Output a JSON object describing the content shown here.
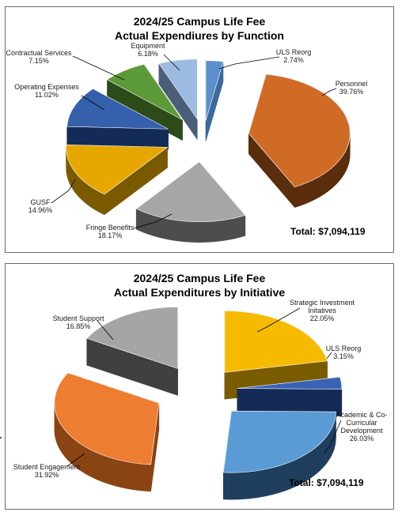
{
  "charts": [
    {
      "title_line1": "2024/25 Campus Life Fee",
      "title_line2": "Actual Expendiures by Function",
      "total_label": "Total:  $7,094,119"
    },
    {
      "title_line1": "2024/25 Campus Life Fee",
      "title_line2": "Actual Expenditures by Initiative",
      "total_label": "Total:  $7,094,119"
    }
  ],
  "chart_data": [
    {
      "type": "pie",
      "style": "3d-exploded",
      "title": "2024/25 Campus Life Fee Actual Expendiures by Function",
      "total": "Total:  $7,094,119",
      "slices": [
        {
          "label": "ULS  Reorg",
          "pct_text": "2.74%",
          "value": 2.74,
          "color": "#5b8fc9",
          "side": "#3b6a9c"
        },
        {
          "label": "Personnel",
          "pct_text": "39.76%",
          "value": 39.76,
          "color": "#d06b26",
          "side": "#5a2d0d"
        },
        {
          "label": "Fringe Benefits",
          "pct_text": "18.17%",
          "value": 18.17,
          "color": "#a6a6a6",
          "side": "#4d4d4d"
        },
        {
          "label": "GUSF",
          "pct_text": "14.96%",
          "value": 14.96,
          "color": "#e6a800",
          "side": "#7a5a00"
        },
        {
          "label": "Operating Expenses",
          "pct_text": "11.02%",
          "value": 11.02,
          "color": "#3460ac",
          "side": "#142a57"
        },
        {
          "label": "Contractual Services",
          "pct_text": "7.15%",
          "value": 7.15,
          "color": "#5c9a38",
          "side": "#2c4b19"
        },
        {
          "label": "Equipment",
          "pct_text": "6.18%",
          "value": 6.18,
          "color": "#9dbbe0",
          "side": "#4a5e78"
        }
      ]
    },
    {
      "type": "pie",
      "style": "3d-exploded",
      "title": "2024/25 Campus Life Fee Actual Expenditures by Initiative",
      "total": "Total:  $7,094,119",
      "slices": [
        {
          "label": "Strategic Investment Initatives",
          "pct_text": "22.05%",
          "value": 22.05,
          "color": "#f6bb00",
          "side": "#7a5c00"
        },
        {
          "label": "ULS Reorg",
          "pct_text": "3.15%",
          "value": 3.15,
          "color": "#3a63b8",
          "side": "#142a57"
        },
        {
          "label": "Academic & Co-Curricular Development",
          "pct_text": "26.03%",
          "value": 26.03,
          "color": "#5b9bd5",
          "side": "#203f5e"
        },
        {
          "label": "Student Engagement",
          "pct_text": "31.92%",
          "value": 31.92,
          "color": "#ed7d31",
          "side": "#8a4312"
        },
        {
          "label": "Student Support",
          "pct_text": "16.85%",
          "value": 16.85,
          "color": "#a5a5a5",
          "side": "#404040"
        }
      ]
    }
  ]
}
